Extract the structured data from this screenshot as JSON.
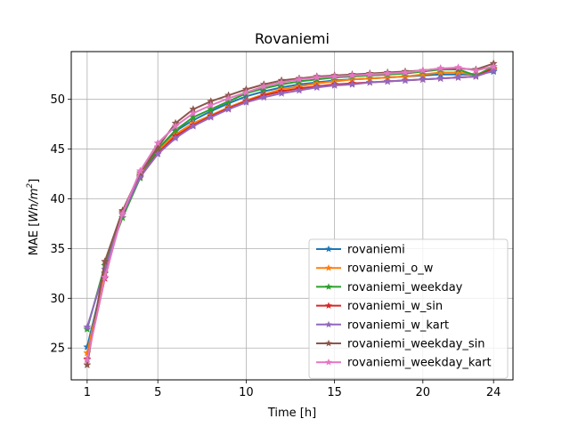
{
  "chart_data": {
    "type": "line",
    "title": "Rovaniemi",
    "xlabel": "Time [h]",
    "ylabel_prefix": "MAE [",
    "ylabel_unit": "Wh/m",
    "ylabel_sup": "2",
    "ylabel_suffix": "]",
    "xlim": [
      0.1,
      25.1
    ],
    "ylim": [
      21.8,
      54.8
    ],
    "xticks": [
      1,
      5,
      10,
      15,
      20,
      24
    ],
    "yticks": [
      25,
      30,
      35,
      40,
      45,
      50
    ],
    "grid": true,
    "legend_position": "lower-right",
    "x": [
      1,
      2,
      3,
      4,
      5,
      6,
      7,
      8,
      9,
      10,
      11,
      12,
      13,
      14,
      15,
      16,
      17,
      18,
      19,
      20,
      21,
      22,
      23,
      24
    ],
    "series": [
      {
        "name": "rovaniemi",
        "color": "#1f77b4",
        "values": [
          25.1,
          32.5,
          38.6,
          42.4,
          45.0,
          46.8,
          47.9,
          48.8,
          49.6,
          50.3,
          50.8,
          51.2,
          51.5,
          51.7,
          51.9,
          52.0,
          52.1,
          52.2,
          52.3,
          52.4,
          52.5,
          52.5,
          52.5,
          52.8
        ]
      },
      {
        "name": "rovaniemi_o_w",
        "color": "#ff7f0e",
        "values": [
          24.5,
          32.6,
          38.7,
          42.3,
          44.8,
          46.5,
          47.6,
          48.4,
          49.2,
          49.9,
          50.5,
          51.0,
          51.3,
          51.6,
          51.8,
          52.0,
          52.1,
          52.2,
          52.3,
          52.5,
          52.7,
          52.7,
          52.5,
          53.0
        ]
      },
      {
        "name": "rovaniemi_weekday",
        "color": "#2ca02c",
        "values": [
          26.9,
          33.3,
          38.1,
          42.1,
          45.0,
          46.9,
          48.2,
          49.0,
          49.8,
          50.6,
          51.1,
          51.5,
          51.8,
          52.0,
          52.2,
          52.3,
          52.4,
          52.5,
          52.6,
          52.8,
          53.0,
          53.0,
          52.4,
          53.3
        ]
      },
      {
        "name": "rovaniemi_w_sin",
        "color": "#d62728",
        "values": [
          23.9,
          32.0,
          38.8,
          42.2,
          44.6,
          46.3,
          47.4,
          48.3,
          49.1,
          49.8,
          50.4,
          50.8,
          51.1,
          51.3,
          51.5,
          51.6,
          51.7,
          51.8,
          51.9,
          52.0,
          52.1,
          52.2,
          52.3,
          53.1
        ]
      },
      {
        "name": "rovaniemi_w_kart",
        "color": "#9467bd",
        "values": [
          27.1,
          32.9,
          38.4,
          42.2,
          44.5,
          46.1,
          47.3,
          48.2,
          49.0,
          49.7,
          50.2,
          50.6,
          50.9,
          51.2,
          51.4,
          51.5,
          51.7,
          51.8,
          51.9,
          52.0,
          52.1,
          52.2,
          52.3,
          52.9
        ]
      },
      {
        "name": "rovaniemi_weekday_sin",
        "color": "#8c564b",
        "values": [
          23.3,
          33.7,
          38.8,
          42.6,
          45.2,
          47.6,
          49.0,
          49.8,
          50.4,
          51.0,
          51.5,
          51.9,
          52.1,
          52.3,
          52.4,
          52.5,
          52.6,
          52.7,
          52.8,
          52.9,
          53.1,
          53.1,
          53.0,
          53.6
        ]
      },
      {
        "name": "rovaniemi_weekday_kart",
        "color": "#e377c2",
        "values": [
          23.8,
          32.1,
          38.5,
          42.8,
          45.6,
          47.3,
          48.6,
          49.4,
          50.1,
          50.7,
          51.3,
          51.7,
          52.0,
          52.2,
          52.3,
          52.4,
          52.5,
          52.6,
          52.7,
          52.9,
          53.1,
          53.2,
          52.9,
          53.3
        ]
      }
    ]
  }
}
